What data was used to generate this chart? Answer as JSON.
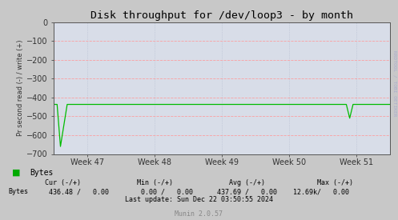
{
  "title": "Disk throughput for /dev/loop3 - by month",
  "ylabel": "Pr second read (-) / write (+)",
  "bg_color": "#c8c8c8",
  "plot_bg_color": "#d8dde8",
  "grid_color_h": "#ff9999",
  "grid_color_v": "#b0b8cc",
  "line_color": "#00bb00",
  "ylim": [
    -700,
    0
  ],
  "yticks": [
    0,
    -100,
    -200,
    -300,
    -400,
    -500,
    -600,
    -700
  ],
  "xlim": [
    0,
    100
  ],
  "xtick_positions": [
    10,
    30,
    50,
    70,
    90
  ],
  "xtick_labels": [
    "Week 47",
    "Week 48",
    "Week 49",
    "Week 50",
    "Week 51"
  ],
  "watermark": "RRDTOOL / TOBI OETIKER",
  "legend_label": "Bytes",
  "legend_color": "#00aa00",
  "footer_munin": "Munin 2.0.57",
  "x_data": [
    0,
    1,
    2,
    4,
    6,
    10,
    20,
    30,
    40,
    50,
    60,
    70,
    80,
    86,
    87,
    88,
    89,
    91,
    92,
    93,
    100
  ],
  "y_data": [
    -437,
    -437,
    -660,
    -437,
    -437,
    -437,
    -437,
    -437,
    -437,
    -437,
    -437,
    -437,
    -437,
    -437,
    -437,
    -510,
    -437,
    -437,
    -437,
    -437,
    -437
  ]
}
